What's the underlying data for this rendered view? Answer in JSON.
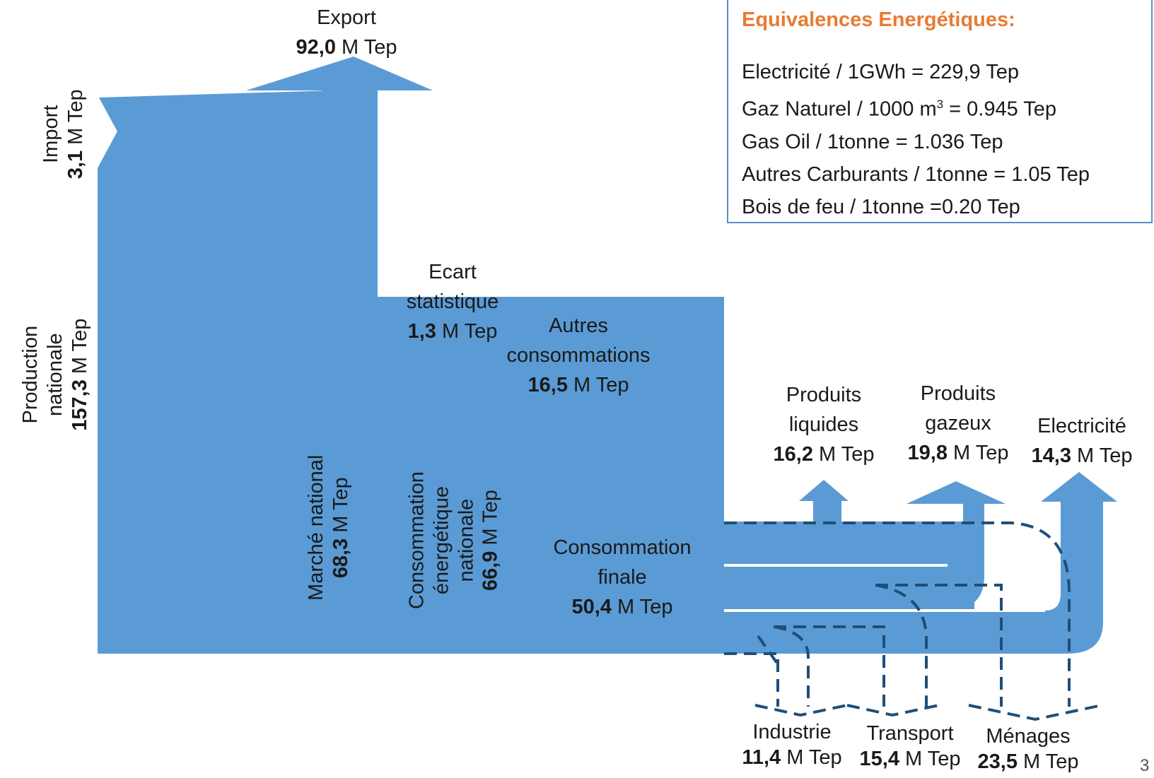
{
  "colors": {
    "flow": "#5b9bd5",
    "dashed": "#1f4e79",
    "title_accent": "#e87b33",
    "box_border": "#5b8fc7"
  },
  "flows": {
    "import": {
      "label": "Import",
      "value": "3,1",
      "unit": "M Tep"
    },
    "production": {
      "label1": "Production",
      "label2": "nationale",
      "value": "157,3",
      "unit": "M Tep"
    },
    "export": {
      "label": "Export",
      "value": "92,0",
      "unit": "M Tep"
    },
    "ecart": {
      "label1": "Ecart",
      "label2": "statistique",
      "value": "1,3",
      "unit": "M Tep"
    },
    "autres": {
      "label1": "Autres",
      "label2": "consommations",
      "value": "16,5",
      "unit": "M Tep"
    },
    "marche": {
      "label": "Marché national",
      "value": "68,3",
      "unit": "M Tep"
    },
    "conso_energetique": {
      "label1": "Consommation",
      "label2": "énergétique",
      "label3": "nationale",
      "value": "66,9",
      "unit": "M Tep"
    },
    "conso_finale": {
      "label1": "Consommation",
      "label2": "finale",
      "value": "50,4",
      "unit": "M Tep"
    },
    "liquides": {
      "label1": "Produits",
      "label2": "liquides",
      "value": "16,2",
      "unit": "M Tep"
    },
    "gazeux": {
      "label1": "Produits",
      "label2": "gazeux",
      "value": "19,8",
      "unit": "M Tep"
    },
    "electricite": {
      "label": "Electricité",
      "value": "14,3",
      "unit": "M Tep"
    },
    "industrie": {
      "label": "Industrie",
      "value": "11,4",
      "unit": "M Tep"
    },
    "transport": {
      "label": "Transport",
      "value": "15,4",
      "unit": "M Tep"
    },
    "menages": {
      "label": "Ménages",
      "value": "23,5",
      "unit": "M Tep"
    }
  },
  "equivalences": {
    "title": "Equivalences Energétiques:",
    "line1": "Electricité / 1GWh = 229,9 Tep",
    "line2_pre": "Gaz Naturel / 1000 m",
    "line2_sup": "3",
    "line2_post": " = 0.945 Tep",
    "line3": "Gas Oil / 1tonne = 1.036 Tep",
    "line4": "Autres Carburants / 1tonne = 1.05 Tep",
    "line5": "Bois de feu / 1tonne =0.20 Tep"
  },
  "page_number": "3"
}
